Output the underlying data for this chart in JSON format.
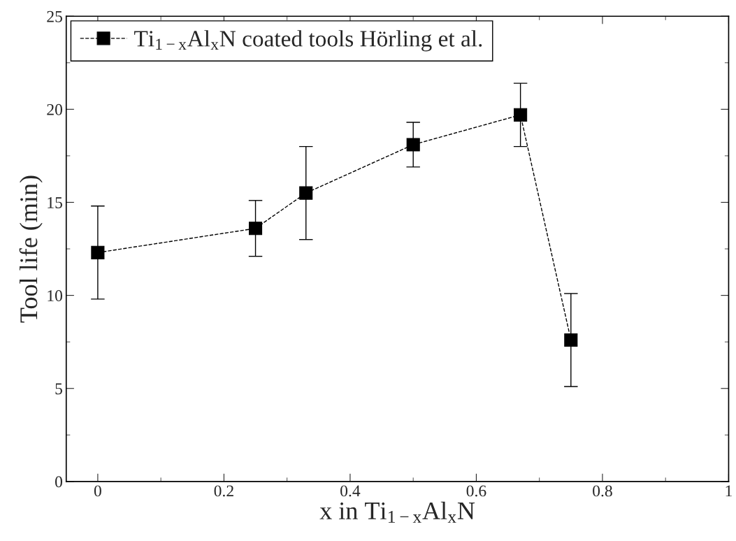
{
  "chart_data": {
    "type": "line",
    "xlabel": "x in Ti$_{1−x}$Al$_{x}$N",
    "ylabel": "Tool life (min)",
    "x": [
      0,
      0.25,
      0.33,
      0.5,
      0.67,
      0.75
    ],
    "series": [
      {
        "name": "Ti$_{1−x}$Al$_{x}$N coated tools Hörling et al.",
        "color": "#000000",
        "values": [
          12.3,
          13.6,
          15.5,
          18.1,
          19.7,
          7.6
        ],
        "errors": [
          2.5,
          1.5,
          2.5,
          1.2,
          1.7,
          2.5
        ]
      }
    ],
    "xlim": [
      -0.05,
      1
    ],
    "xticks": [
      0,
      0.2,
      0.4,
      0.6,
      0.8,
      1
    ],
    "ylim": [
      0,
      25
    ],
    "yticks": [
      0,
      5,
      10,
      15,
      20,
      25
    ],
    "marker": "square",
    "line_style": "dashed",
    "grid": false,
    "legend": "top left"
  }
}
